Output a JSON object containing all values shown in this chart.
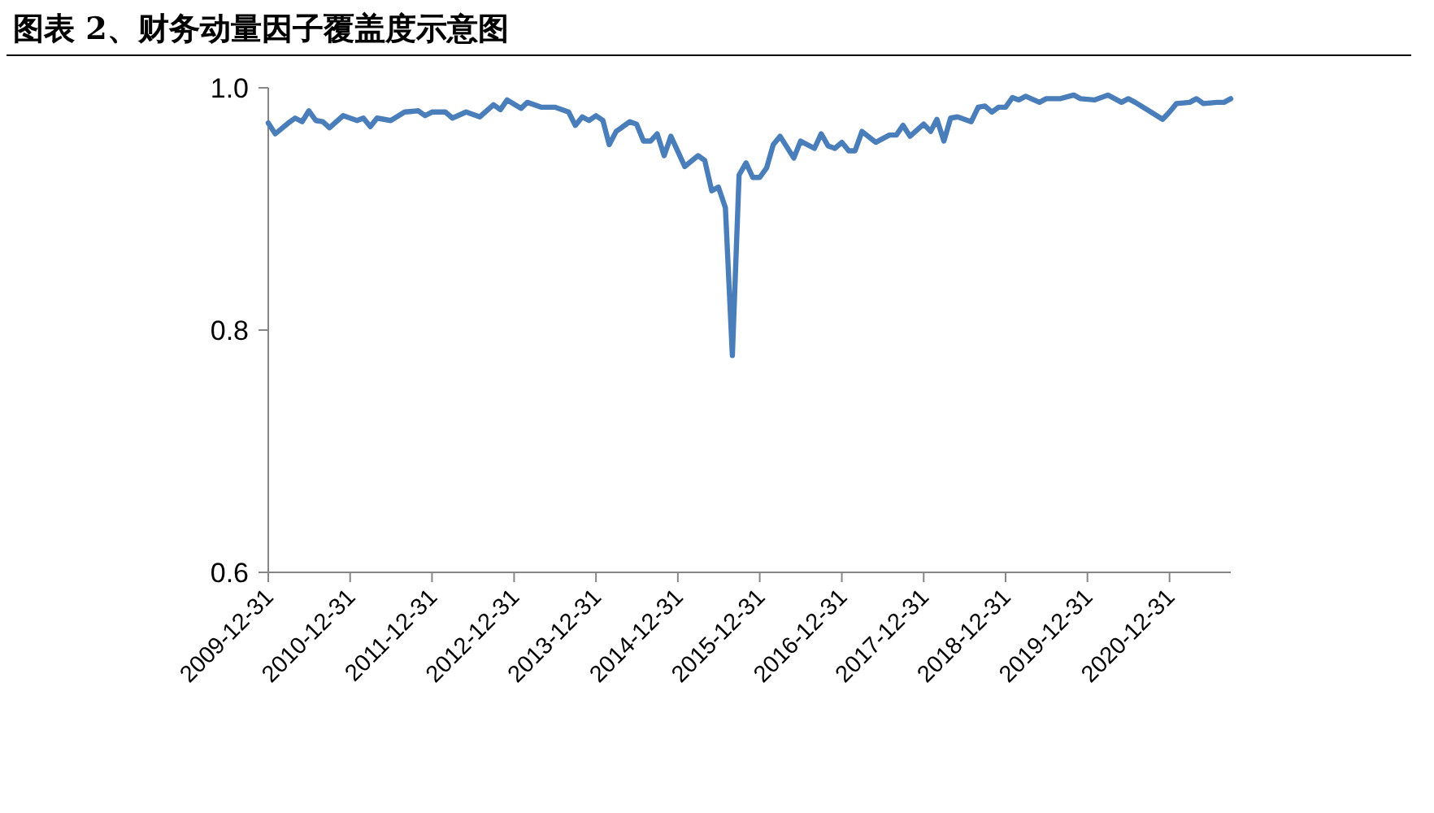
{
  "chart_data": {
    "type": "line",
    "title": "图表 2、财务动量因子覆盖度示意图",
    "x": [
      "2009-12-31",
      "2010-01-31",
      "2010-03-31",
      "2010-04-30",
      "2010-05-31",
      "2010-06-30",
      "2010-07-31",
      "2010-08-31",
      "2010-09-30",
      "2010-11-30",
      "2011-01-31",
      "2011-02-28",
      "2011-03-31",
      "2011-04-30",
      "2011-06-30",
      "2011-08-31",
      "2011-10-31",
      "2011-11-30",
      "2011-12-31",
      "2012-02-29",
      "2012-03-31",
      "2012-05-31",
      "2012-07-31",
      "2012-09-30",
      "2012-10-31",
      "2012-11-30",
      "2013-01-31",
      "2013-02-28",
      "2013-04-30",
      "2013-06-30",
      "2013-08-31",
      "2013-09-30",
      "2013-10-31",
      "2013-11-30",
      "2013-12-31",
      "2014-01-31",
      "2014-02-28",
      "2014-03-31",
      "2014-05-31",
      "2014-06-30",
      "2014-07-31",
      "2014-08-31",
      "2014-09-30",
      "2014-10-31",
      "2014-11-30",
      "2015-01-31",
      "2015-03-31",
      "2015-04-30",
      "2015-05-31",
      "2015-06-30",
      "2015-07-31",
      "2015-08-31",
      "2015-09-30",
      "2015-10-31",
      "2015-11-30",
      "2015-12-31",
      "2016-01-31",
      "2016-02-29",
      "2016-03-31",
      "2016-05-31",
      "2016-06-30",
      "2016-08-31",
      "2016-09-30",
      "2016-10-31",
      "2016-11-30",
      "2016-12-31",
      "2017-01-31",
      "2017-02-28",
      "2017-03-31",
      "2017-05-31",
      "2017-07-31",
      "2017-08-31",
      "2017-09-30",
      "2017-10-31",
      "2017-12-31",
      "2018-01-31",
      "2018-02-28",
      "2018-03-31",
      "2018-04-30",
      "2018-05-31",
      "2018-07-31",
      "2018-08-31",
      "2018-09-30",
      "2018-10-31",
      "2018-11-30",
      "2018-12-31",
      "2019-01-31",
      "2019-02-28",
      "2019-03-31",
      "2019-05-31",
      "2019-06-30",
      "2019-08-31",
      "2019-10-31",
      "2019-11-30",
      "2020-01-31",
      "2020-03-31",
      "2020-05-31",
      "2020-06-30",
      "2020-07-31",
      "2020-09-30",
      "2020-11-30",
      "2020-12-31",
      "2021-01-31",
      "2021-03-31",
      "2021-04-30",
      "2021-05-31",
      "2021-07-31",
      "2021-08-31",
      "2021-09-30"
    ],
    "series": [
      {
        "color": "#4a7ebb",
        "values": [
          0.971,
          0.962,
          0.971,
          0.975,
          0.972,
          0.981,
          0.973,
          0.972,
          0.967,
          0.977,
          0.973,
          0.975,
          0.968,
          0.975,
          0.973,
          0.98,
          0.981,
          0.977,
          0.98,
          0.98,
          0.975,
          0.98,
          0.976,
          0.986,
          0.982,
          0.99,
          0.983,
          0.988,
          0.984,
          0.984,
          0.98,
          0.969,
          0.976,
          0.973,
          0.977,
          0.973,
          0.953,
          0.964,
          0.972,
          0.97,
          0.956,
          0.956,
          0.962,
          0.944,
          0.96,
          0.935,
          0.944,
          0.94,
          0.915,
          0.918,
          0.901,
          0.779,
          0.928,
          0.938,
          0.926,
          0.926,
          0.934,
          0.953,
          0.96,
          0.942,
          0.956,
          0.95,
          0.962,
          0.952,
          0.95,
          0.955,
          0.948,
          0.948,
          0.964,
          0.955,
          0.961,
          0.961,
          0.969,
          0.96,
          0.97,
          0.964,
          0.974,
          0.956,
          0.975,
          0.976,
          0.972,
          0.984,
          0.985,
          0.98,
          0.984,
          0.984,
          0.992,
          0.99,
          0.993,
          0.988,
          0.991,
          0.991,
          0.994,
          0.991,
          0.99,
          0.994,
          0.988,
          0.991,
          0.988,
          0.981,
          0.974,
          0.98,
          0.987,
          0.988,
          0.991,
          0.987,
          0.988,
          0.988,
          0.991
        ]
      }
    ],
    "xlim": [
      "2009-12-31",
      "2021-09-30"
    ],
    "xticks": [
      "2009-12-31",
      "2010-12-31",
      "2011-12-31",
      "2012-12-31",
      "2013-12-31",
      "2014-12-31",
      "2015-12-31",
      "2016-12-31",
      "2017-12-31",
      "2018-12-31",
      "2019-12-31",
      "2020-12-31"
    ],
    "ylim": [
      0.6,
      1.0
    ],
    "yticks": [
      {
        "value": 0.6,
        "label": "0.6"
      },
      {
        "value": 0.8,
        "label": "0.8"
      },
      {
        "value": 1.0,
        "label": "1.0"
      }
    ],
    "grid": false,
    "marker": "none",
    "line_style": "solid"
  }
}
